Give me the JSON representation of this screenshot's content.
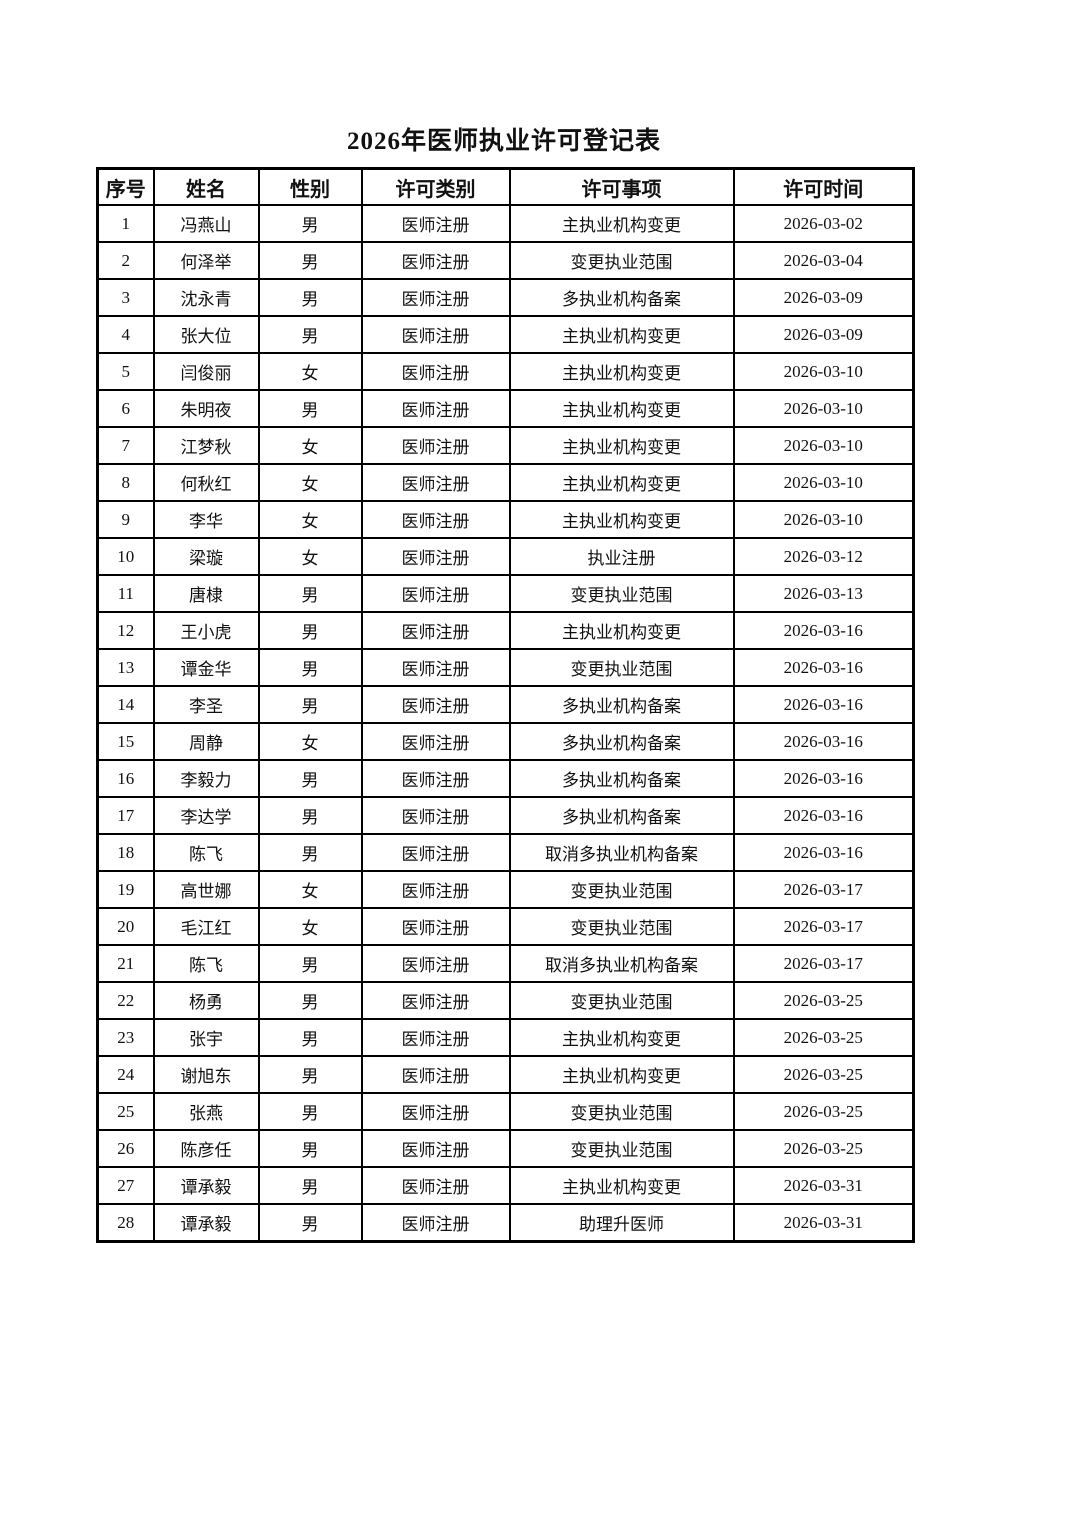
{
  "page": {
    "title": "2026年医师执业许可登记表"
  },
  "table": {
    "headers": [
      "序号",
      "姓名",
      "性别",
      "许可类别",
      "许可事项",
      "许可时间"
    ],
    "rows": [
      [
        "1",
        "冯燕山",
        "男",
        "医师注册",
        "主执业机构变更",
        "2026-03-02"
      ],
      [
        "2",
        "何泽举",
        "男",
        "医师注册",
        "变更执业范围",
        "2026-03-04"
      ],
      [
        "3",
        "沈永青",
        "男",
        "医师注册",
        "多执业机构备案",
        "2026-03-09"
      ],
      [
        "4",
        "张大位",
        "男",
        "医师注册",
        "主执业机构变更",
        "2026-03-09"
      ],
      [
        "5",
        "闫俊丽",
        "女",
        "医师注册",
        "主执业机构变更",
        "2026-03-10"
      ],
      [
        "6",
        "朱明夜",
        "男",
        "医师注册",
        "主执业机构变更",
        "2026-03-10"
      ],
      [
        "7",
        "江梦秋",
        "女",
        "医师注册",
        "主执业机构变更",
        "2026-03-10"
      ],
      [
        "8",
        "何秋红",
        "女",
        "医师注册",
        "主执业机构变更",
        "2026-03-10"
      ],
      [
        "9",
        "李华",
        "女",
        "医师注册",
        "主执业机构变更",
        "2026-03-10"
      ],
      [
        "10",
        "梁璇",
        "女",
        "医师注册",
        "执业注册",
        "2026-03-12"
      ],
      [
        "11",
        "唐棣",
        "男",
        "医师注册",
        "变更执业范围",
        "2026-03-13"
      ],
      [
        "12",
        "王小虎",
        "男",
        "医师注册",
        "主执业机构变更",
        "2026-03-16"
      ],
      [
        "13",
        "谭金华",
        "男",
        "医师注册",
        "变更执业范围",
        "2026-03-16"
      ],
      [
        "14",
        "李圣",
        "男",
        "医师注册",
        "多执业机构备案",
        "2026-03-16"
      ],
      [
        "15",
        "周静",
        "女",
        "医师注册",
        "多执业机构备案",
        "2026-03-16"
      ],
      [
        "16",
        "李毅力",
        "男",
        "医师注册",
        "多执业机构备案",
        "2026-03-16"
      ],
      [
        "17",
        "李达学",
        "男",
        "医师注册",
        "多执业机构备案",
        "2026-03-16"
      ],
      [
        "18",
        "陈飞",
        "男",
        "医师注册",
        "取消多执业机构备案",
        "2026-03-16"
      ],
      [
        "19",
        "高世娜",
        "女",
        "医师注册",
        "变更执业范围",
        "2026-03-17"
      ],
      [
        "20",
        "毛江红",
        "女",
        "医师注册",
        "变更执业范围",
        "2026-03-17"
      ],
      [
        "21",
        "陈飞",
        "男",
        "医师注册",
        "取消多执业机构备案",
        "2026-03-17"
      ],
      [
        "22",
        "杨勇",
        "男",
        "医师注册",
        "变更执业范围",
        "2026-03-25"
      ],
      [
        "23",
        "张宇",
        "男",
        "医师注册",
        "主执业机构变更",
        "2026-03-25"
      ],
      [
        "24",
        "谢旭东",
        "男",
        "医师注册",
        "主执业机构变更",
        "2026-03-25"
      ],
      [
        "25",
        "张燕",
        "男",
        "医师注册",
        "变更执业范围",
        "2026-03-25"
      ],
      [
        "26",
        "陈彦任",
        "男",
        "医师注册",
        "变更执业范围",
        "2026-03-25"
      ],
      [
        "27",
        "谭承毅",
        "男",
        "医师注册",
        "主执业机构变更",
        "2026-03-31"
      ],
      [
        "28",
        "谭承毅",
        "男",
        "医师注册",
        "助理升医师",
        "2026-03-31"
      ]
    ]
  }
}
